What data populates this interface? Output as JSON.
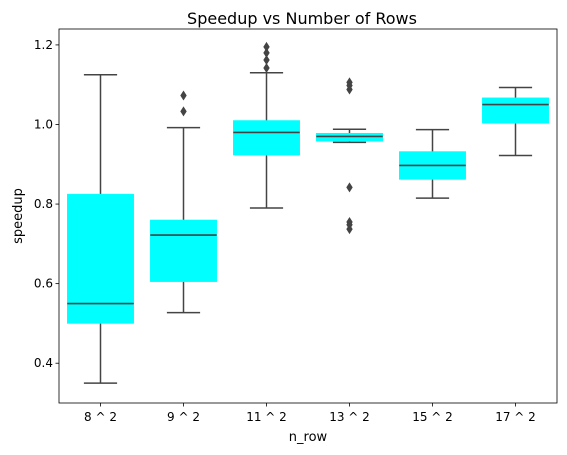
{
  "chart_data": {
    "type": "box",
    "title": "Speedup vs Number of Rows",
    "xlabel": "n_row",
    "ylabel": "speedup",
    "ylim": [
      0.3,
      1.24
    ],
    "yticks": [
      "0.4",
      "0.6",
      "0.8",
      "1.0",
      "1.2"
    ],
    "ytick_values": [
      0.4,
      0.6,
      0.8,
      1.0,
      1.2
    ],
    "grid": false,
    "box_color": "#00FFFF",
    "median_color": "#444444",
    "categories": [
      "8 ^ 2",
      "9 ^ 2",
      "11 ^ 2",
      "13 ^ 2",
      "15 ^ 2",
      "17 ^ 2"
    ],
    "boxes": [
      {
        "category": "8 ^ 2",
        "whisker_low": 0.35,
        "q1": 0.5,
        "median": 0.55,
        "q3": 0.825,
        "whisker_high": 1.125,
        "outliers": []
      },
      {
        "category": "9 ^ 2",
        "whisker_low": 0.527,
        "q1": 0.605,
        "median": 0.722,
        "q3": 0.76,
        "whisker_high": 0.992,
        "outliers": [
          1.033,
          1.073
        ]
      },
      {
        "category": "11 ^ 2",
        "whisker_low": 0.79,
        "q1": 0.923,
        "median": 0.98,
        "q3": 1.01,
        "whisker_high": 1.13,
        "outliers": [
          1.142,
          1.162,
          1.18,
          1.195
        ]
      },
      {
        "category": "13 ^ 2",
        "whisker_low": 0.955,
        "q1": 0.958,
        "median": 0.97,
        "q3": 0.978,
        "whisker_high": 0.988,
        "outliers": [
          0.737,
          0.748,
          0.755,
          0.842,
          1.088,
          1.098,
          1.106
        ]
      },
      {
        "category": "15 ^ 2",
        "whisker_low": 0.815,
        "q1": 0.862,
        "median": 0.897,
        "q3": 0.932,
        "whisker_high": 0.987,
        "outliers": []
      },
      {
        "category": "17 ^ 2",
        "whisker_low": 0.922,
        "q1": 1.003,
        "median": 1.05,
        "q3": 1.067,
        "whisker_high": 1.093,
        "outliers": []
      }
    ]
  }
}
